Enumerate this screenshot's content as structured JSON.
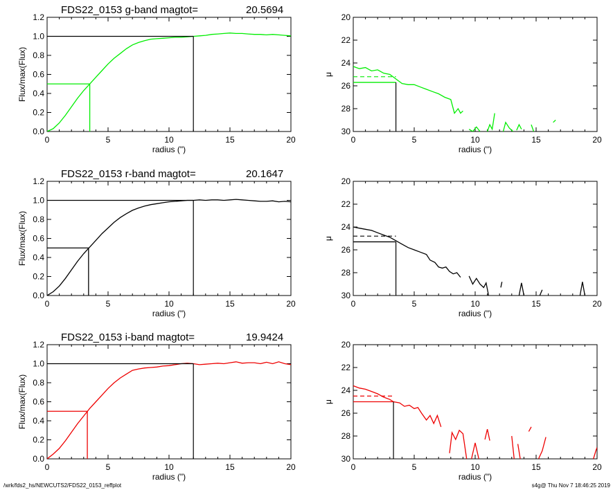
{
  "footer": {
    "path": "/wrk/fds2_hs/NEWCUTS2/FDS22_0153_reffplot",
    "stamp": "s4g@  Thu Nov  7 18:46:25 2019"
  },
  "chart_data": [
    {
      "type": "line",
      "band": "g",
      "color": "#00ee00",
      "title": "FDS22_0153 g-band  magtot=",
      "magtot": "20.5694",
      "xlabel": "radius (\")",
      "ylabel": "Flux/max(Flux)",
      "xlim": [
        0,
        20
      ],
      "ylim": [
        0,
        1.2
      ],
      "xticks": [
        0,
        5,
        10,
        15,
        20
      ],
      "yticks": [
        0.0,
        0.2,
        0.4,
        0.6,
        0.8,
        1.0,
        1.2
      ],
      "ytick_labels": [
        "0.0",
        "0.2",
        "0.4",
        "0.6",
        "0.8",
        "1.0",
        "1.2"
      ],
      "r_half": 3.5,
      "r_max": 12.0,
      "x": [
        0,
        0.5,
        1,
        1.5,
        2,
        2.5,
        3,
        3.5,
        4,
        4.5,
        5,
        5.5,
        6,
        6.5,
        7,
        7.5,
        8,
        8.5,
        9,
        9.5,
        10,
        10.5,
        11,
        11.5,
        12,
        12.5,
        13,
        13.5,
        14,
        14.5,
        15,
        15.5,
        16,
        16.5,
        17,
        17.5,
        18,
        18.5,
        19,
        19.5,
        20
      ],
      "y": [
        0,
        0.03,
        0.09,
        0.17,
        0.26,
        0.35,
        0.43,
        0.5,
        0.57,
        0.64,
        0.71,
        0.77,
        0.82,
        0.87,
        0.91,
        0.935,
        0.955,
        0.97,
        0.975,
        0.98,
        0.985,
        0.99,
        0.99,
        0.995,
        1.0,
        1.005,
        1.01,
        1.02,
        1.025,
        1.03,
        1.035,
        1.03,
        1.03,
        1.025,
        1.02,
        1.02,
        1.015,
        1.02,
        1.015,
        1.01,
        1.005
      ]
    },
    {
      "type": "line",
      "band": "g",
      "color": "#00ee00",
      "title": "",
      "xlabel": "radius (\")",
      "ylabel": "μ",
      "xlim": [
        0,
        20
      ],
      "ylim": [
        30,
        20
      ],
      "y_inverted": true,
      "xticks": [
        0,
        5,
        10,
        15,
        20
      ],
      "yticks": [
        20,
        22,
        24,
        26,
        28,
        30
      ],
      "r_half": 3.5,
      "mu_half_dashed": 25.2,
      "mu_half_solid": 25.7,
      "mu_max": 30,
      "segments": [
        [
          [
            0,
            24.3
          ],
          [
            0.5,
            24.5
          ],
          [
            1,
            24.4
          ],
          [
            1.5,
            24.7
          ],
          [
            2,
            24.6
          ],
          [
            2.5,
            24.9
          ],
          [
            3,
            25.0
          ],
          [
            3.5,
            25.4
          ],
          [
            4,
            25.8
          ],
          [
            4.5,
            25.9
          ],
          [
            5,
            25.9
          ],
          [
            5.5,
            26.1
          ],
          [
            6,
            26.3
          ],
          [
            6.5,
            26.5
          ],
          [
            7,
            26.7
          ],
          [
            7.5,
            27.0
          ],
          [
            8,
            27.2
          ],
          [
            8.3,
            28.4
          ],
          [
            8.6,
            28.0
          ],
          [
            8.8,
            28.4
          ],
          [
            9,
            28.2
          ]
        ],
        [
          [
            9.5,
            29.8
          ],
          [
            9.8,
            30.0
          ],
          [
            10.1,
            29.6
          ],
          [
            10.4,
            30.0
          ]
        ],
        [
          [
            11,
            30.0
          ],
          [
            11.2,
            29.4
          ],
          [
            11.4,
            29.8
          ],
          [
            11.6,
            28.4
          ]
        ],
        [
          [
            12.3,
            30.0
          ],
          [
            12.5,
            29.2
          ],
          [
            12.8,
            29.7
          ],
          [
            13.1,
            30.0
          ]
        ],
        [
          [
            13.4,
            29.9
          ],
          [
            13.6,
            29.4
          ],
          [
            13.8,
            29.8
          ]
        ],
        [
          [
            14.6,
            29.4
          ],
          [
            14.8,
            30.0
          ]
        ],
        [
          [
            16.4,
            29.2
          ],
          [
            16.6,
            29.0
          ]
        ]
      ]
    },
    {
      "type": "line",
      "band": "r",
      "color": "#000000",
      "title": "FDS22_0153 r-band  magtot=",
      "magtot": "20.1647",
      "xlabel": "radius (\")",
      "ylabel": "Flux/max(Flux)",
      "xlim": [
        0,
        20
      ],
      "ylim": [
        0,
        1.2
      ],
      "xticks": [
        0,
        5,
        10,
        15,
        20
      ],
      "yticks": [
        0.0,
        0.2,
        0.4,
        0.6,
        0.8,
        1.0,
        1.2
      ],
      "ytick_labels": [
        "0.0",
        "0.2",
        "0.4",
        "0.6",
        "0.8",
        "1.0",
        "1.2"
      ],
      "r_half": 3.4,
      "r_max": 12.0,
      "x": [
        0,
        0.5,
        1,
        1.5,
        2,
        2.5,
        3,
        3.5,
        4,
        4.5,
        5,
        5.5,
        6,
        6.5,
        7,
        7.5,
        8,
        8.5,
        9,
        9.5,
        10,
        10.5,
        11,
        11.5,
        12,
        12.5,
        13,
        13.5,
        14,
        14.5,
        15,
        15.5,
        16,
        16.5,
        17,
        17.5,
        18,
        18.5,
        19,
        19.5,
        20
      ],
      "y": [
        0,
        0.04,
        0.1,
        0.18,
        0.27,
        0.36,
        0.44,
        0.51,
        0.58,
        0.65,
        0.71,
        0.77,
        0.82,
        0.86,
        0.895,
        0.92,
        0.94,
        0.955,
        0.965,
        0.975,
        0.985,
        0.99,
        0.995,
        1.0,
        1.0,
        1.005,
        1.0,
        1.005,
        1.005,
        1.0,
        1.005,
        1.01,
        1.005,
        1.0,
        0.995,
        0.99,
        0.99,
        0.995,
        0.985,
        0.99,
        0.985
      ]
    },
    {
      "type": "line",
      "band": "r",
      "color": "#000000",
      "title": "",
      "xlabel": "radius (\")",
      "ylabel": "μ",
      "xlim": [
        0,
        20
      ],
      "ylim": [
        30,
        20
      ],
      "y_inverted": true,
      "xticks": [
        0,
        5,
        10,
        15,
        20
      ],
      "yticks": [
        20,
        22,
        24,
        26,
        28,
        30
      ],
      "r_half": 3.5,
      "mu_half_dashed": 24.8,
      "mu_half_solid": 25.3,
      "mu_max": 30,
      "segments": [
        [
          [
            0,
            24.0
          ],
          [
            0.5,
            24.1
          ],
          [
            1,
            24.2
          ],
          [
            1.5,
            24.3
          ],
          [
            2,
            24.5
          ],
          [
            2.5,
            24.7
          ],
          [
            3,
            24.9
          ],
          [
            3.5,
            25.2
          ],
          [
            4,
            25.5
          ],
          [
            4.5,
            25.8
          ],
          [
            5,
            26.0
          ],
          [
            5.5,
            26.2
          ],
          [
            6,
            26.4
          ],
          [
            6.3,
            26.9
          ],
          [
            6.7,
            27.1
          ],
          [
            7,
            27.5
          ],
          [
            7.3,
            27.6
          ],
          [
            7.6,
            27.5
          ],
          [
            7.9,
            27.9
          ],
          [
            8.2,
            28.1
          ],
          [
            8.5,
            28.0
          ],
          [
            8.8,
            28.4
          ]
        ],
        [
          [
            9.5,
            28.3
          ],
          [
            9.8,
            29.0
          ],
          [
            10.1,
            28.5
          ],
          [
            10.4,
            29.0
          ],
          [
            10.7,
            29.3
          ],
          [
            10.9,
            28.9
          ],
          [
            11.1,
            30.0
          ]
        ],
        [
          [
            12.1,
            29.3
          ],
          [
            12.2,
            28.8
          ]
        ],
        [
          [
            13.6,
            30.0
          ],
          [
            13.8,
            28.9
          ],
          [
            14.0,
            30.0
          ]
        ],
        [
          [
            15.3,
            30.0
          ],
          [
            15.5,
            29.5
          ]
        ],
        [
          [
            18.6,
            30.0
          ],
          [
            18.8,
            28.8
          ],
          [
            19.0,
            30.0
          ]
        ]
      ]
    },
    {
      "type": "line",
      "band": "i",
      "color": "#ee0000",
      "title": "FDS22_0153 i-band  magtot=",
      "magtot": "19.9424",
      "xlabel": "radius (\")",
      "ylabel": "Flux/max(Flux)",
      "xlim": [
        0,
        20
      ],
      "ylim": [
        0,
        1.2
      ],
      "xticks": [
        0,
        5,
        10,
        15,
        20
      ],
      "yticks": [
        0.0,
        0.2,
        0.4,
        0.6,
        0.8,
        1.0,
        1.2
      ],
      "ytick_labels": [
        "0.0",
        "0.2",
        "0.4",
        "0.6",
        "0.8",
        "1.0",
        "1.2"
      ],
      "r_half": 3.3,
      "r_max": 12.0,
      "x": [
        0,
        0.5,
        1,
        1.5,
        2,
        2.5,
        3,
        3.5,
        4,
        4.5,
        5,
        5.5,
        6,
        6.5,
        7,
        7.5,
        8,
        8.5,
        9,
        9.5,
        10,
        10.5,
        11,
        11.5,
        12,
        12.5,
        13,
        13.5,
        14,
        14.5,
        15,
        15.5,
        16,
        16.5,
        17,
        17.5,
        18,
        18.5,
        19,
        19.5,
        20
      ],
      "y": [
        0,
        0.05,
        0.11,
        0.19,
        0.28,
        0.37,
        0.45,
        0.53,
        0.6,
        0.67,
        0.74,
        0.8,
        0.85,
        0.89,
        0.93,
        0.945,
        0.955,
        0.96,
        0.965,
        0.975,
        0.98,
        0.99,
        1.0,
        1.005,
        1.0,
        0.99,
        0.995,
        1.0,
        1.005,
        1.0,
        1.01,
        1.02,
        1.005,
        1.01,
        1.01,
        1.0,
        1.015,
        1.0,
        1.02,
        1.0,
        0.99
      ]
    },
    {
      "type": "line",
      "band": "i",
      "color": "#ee0000",
      "title": "",
      "xlabel": "radius (\")",
      "ylabel": "μ",
      "xlim": [
        0,
        20
      ],
      "ylim": [
        30,
        20
      ],
      "y_inverted": true,
      "xticks": [
        0,
        5,
        10,
        15,
        20
      ],
      "yticks": [
        20,
        22,
        24,
        26,
        28,
        30
      ],
      "r_half": 3.3,
      "mu_half_dashed": 24.5,
      "mu_half_solid": 25.0,
      "mu_max": 30,
      "segments": [
        [
          [
            0,
            23.6
          ],
          [
            0.5,
            23.8
          ],
          [
            1,
            23.9
          ],
          [
            1.5,
            24.1
          ],
          [
            2,
            24.3
          ],
          [
            2.5,
            24.6
          ],
          [
            3,
            24.8
          ],
          [
            3.3,
            25.0
          ],
          [
            3.8,
            25.1
          ],
          [
            4.2,
            25.4
          ],
          [
            4.6,
            25.3
          ],
          [
            5,
            25.6
          ],
          [
            5.3,
            25.5
          ],
          [
            5.6,
            26.0
          ],
          [
            6,
            26.6
          ],
          [
            6.3,
            26.2
          ],
          [
            6.6,
            26.9
          ],
          [
            6.9,
            26.2
          ],
          [
            7.2,
            27.2
          ]
        ],
        [
          [
            7.9,
            29.5
          ],
          [
            8.1,
            27.7
          ],
          [
            8.4,
            28.3
          ],
          [
            8.7,
            27.5
          ],
          [
            9,
            27.8
          ],
          [
            9.3,
            30.0
          ]
        ],
        [
          [
            9.7,
            30.0
          ],
          [
            10.0,
            28.6
          ],
          [
            10.3,
            30.0
          ]
        ],
        [
          [
            10.8,
            28.3
          ],
          [
            11.0,
            27.4
          ],
          [
            11.2,
            28.4
          ]
        ],
        [
          [
            13.0,
            28.0
          ],
          [
            13.2,
            30.0
          ]
        ],
        [
          [
            13.5,
            28.7
          ],
          [
            13.7,
            30.0
          ]
        ],
        [
          [
            14.4,
            27.6
          ],
          [
            14.6,
            27.2
          ]
        ],
        [
          [
            15.2,
            30.0
          ],
          [
            15.5,
            29.3
          ],
          [
            15.8,
            28.1
          ]
        ],
        [
          [
            19.7,
            30.0
          ],
          [
            19.9,
            29.3
          ],
          [
            20.0,
            29.0
          ]
        ]
      ]
    }
  ]
}
